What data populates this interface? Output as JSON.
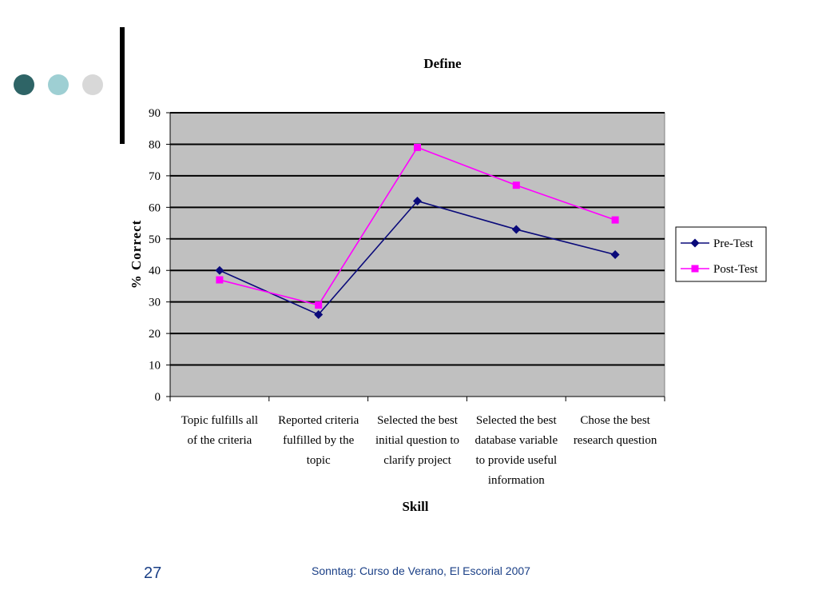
{
  "slide": {
    "number": "27",
    "footer": "Sonntag: Curso de Verano, El Escorial 2007",
    "dot_colors": [
      "#2e6466",
      "#9ecfd3",
      "#d8d8d8"
    ],
    "text_color": "#1a3f86"
  },
  "chart_data": {
    "type": "line",
    "title": "Define",
    "xlabel": "Skill",
    "ylabel": "% Correct",
    "ylim": [
      0,
      90
    ],
    "yticks": [
      0,
      10,
      20,
      30,
      40,
      50,
      60,
      70,
      80,
      90
    ],
    "grid": true,
    "legend_position": "right",
    "plot_background": "#c0c0c0",
    "categories": [
      [
        "Topic fulfills all",
        "of the criteria"
      ],
      [
        "Reported criteria",
        "fulfilled by the",
        "topic"
      ],
      [
        "Selected the best",
        "initial question to",
        "clarify project"
      ],
      [
        "Selected the best",
        "database variable",
        "to provide useful",
        "information"
      ],
      [
        "Chose the best",
        "research question"
      ]
    ],
    "series": [
      {
        "name": "Pre-Test",
        "values": [
          40,
          26,
          62,
          53,
          45
        ],
        "color": "#0a0a7a",
        "marker": "diamond"
      },
      {
        "name": "Post-Test",
        "values": [
          37,
          29,
          79,
          67,
          56
        ],
        "color": "#ff00ff",
        "marker": "square"
      }
    ]
  }
}
